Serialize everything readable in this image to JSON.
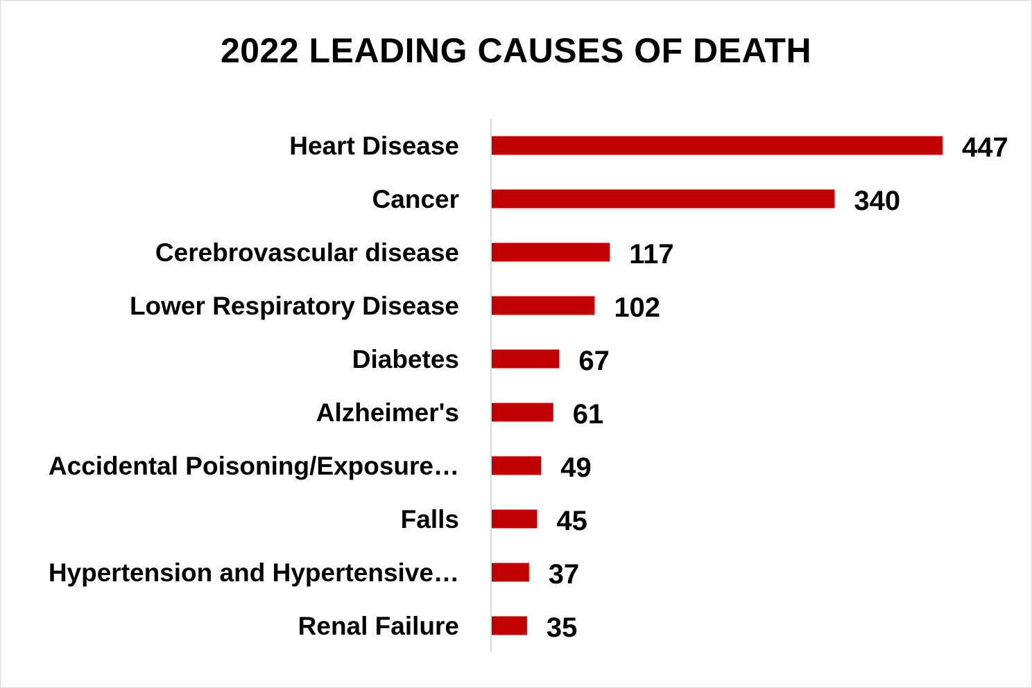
{
  "chart_data": {
    "type": "bar",
    "orientation": "horizontal",
    "title": "2022 LEADING CAUSES OF DEATH",
    "xlabel": "",
    "ylabel": "",
    "categories": [
      "Heart Disease",
      "Cancer",
      "Cerebrovascular disease",
      "Lower Respiratory Disease",
      "Diabetes",
      "Alzheimer's",
      "Accidental Poisoning/Exposure…",
      "Falls",
      "Hypertension and Hypertensive…",
      "Renal Failure"
    ],
    "values": [
      447,
      340,
      117,
      102,
      67,
      61,
      49,
      45,
      37,
      35
    ],
    "xlim": [
      0,
      447
    ],
    "grid": false,
    "legend": "none",
    "data_labels": true,
    "bar_color": "#c00000"
  }
}
